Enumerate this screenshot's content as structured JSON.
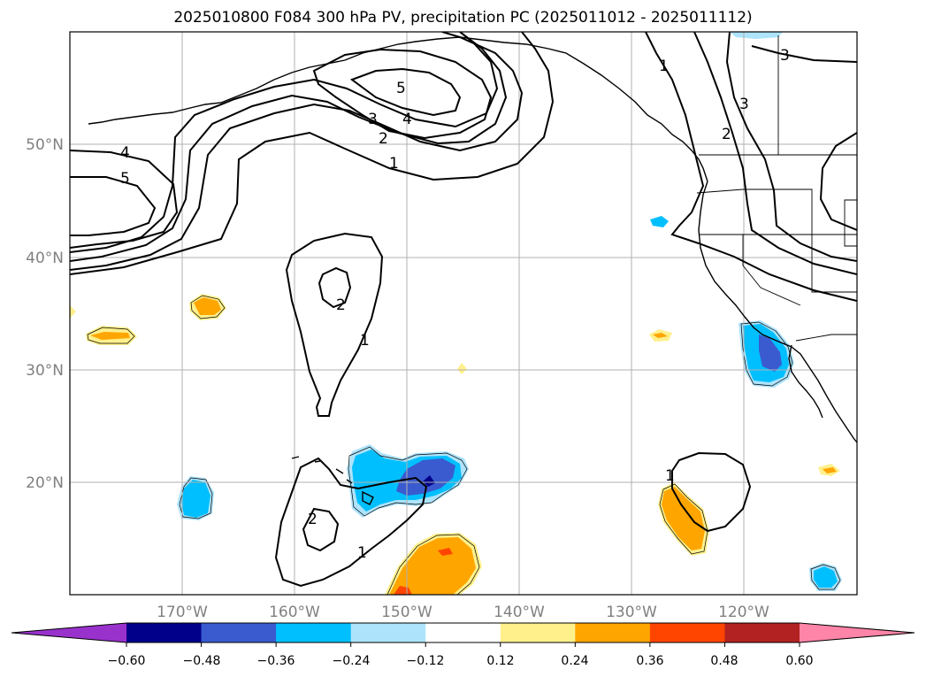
{
  "title": "2025010800 F084 300 hPa PV, precipitation PC (2025011012 - 2025011112)",
  "chart_data": {
    "type": "heatmap",
    "title": "2025010800 F084 300 hPa PV, precipitation PC (2025011012 - 2025011112)",
    "projection": "lat-lon",
    "xlim": [
      -180,
      -110
    ],
    "ylim": [
      10,
      60
    ],
    "grid": true,
    "lon_ticks": [
      -170,
      -160,
      -150,
      -140,
      -130,
      -120
    ],
    "lon_tick_labels": [
      "170°W",
      "160°W",
      "150°W",
      "140°W",
      "130°W",
      "120°W"
    ],
    "lat_ticks": [
      20,
      30,
      40,
      50
    ],
    "lat_tick_labels": [
      "20°N",
      "30°N",
      "40°N",
      "50°N"
    ],
    "colorbar": {
      "orientation": "horizontal",
      "extend": "both",
      "levels": [
        -0.6,
        -0.48,
        -0.36,
        -0.24,
        -0.12,
        0.12,
        0.24,
        0.36,
        0.48,
        0.6
      ],
      "tick_labels": [
        "−0.60",
        "−0.48",
        "−0.36",
        "−0.24",
        "−0.12",
        "0.12",
        "0.24",
        "0.36",
        "0.48",
        "0.60"
      ],
      "colors": [
        "#9932cc",
        "#00008b",
        "#3a5bcf",
        "#00bfff",
        "#ade3fb",
        "#ffffff",
        "#fff08c",
        "#ffa500",
        "#ff4500",
        "#b22222",
        "#ff85a8"
      ]
    },
    "pv_contour_labels": [
      {
        "text": "5",
        "lon": -175,
        "lat": 47
      },
      {
        "text": "4",
        "lon": -175,
        "lat": 49
      },
      {
        "text": "3",
        "lon": -158,
        "lat": 52.5
      },
      {
        "text": "4",
        "lon": -156,
        "lat": 52.5
      },
      {
        "text": "5",
        "lon": -157,
        "lat": 55
      },
      {
        "text": "2",
        "lon": -157,
        "lat": 50.5
      },
      {
        "text": "1",
        "lon": -155,
        "lat": 48.5
      },
      {
        "text": "2",
        "lon": -164,
        "lat": 38
      },
      {
        "text": "1",
        "lon": -163,
        "lat": 33
      },
      {
        "text": "2",
        "lon": -161,
        "lat": 16
      },
      {
        "text": "1",
        "lon": -157,
        "lat": 14
      },
      {
        "text": "1",
        "lon": -124,
        "lat": 57.5
      },
      {
        "text": "2",
        "lon": -117,
        "lat": 51.5
      },
      {
        "text": "3",
        "lon": -119,
        "lat": 54
      },
      {
        "text": "3",
        "lon": -113,
        "lat": 57
      },
      {
        "text": "1",
        "lon": -126.5,
        "lat": 21
      }
    ]
  }
}
